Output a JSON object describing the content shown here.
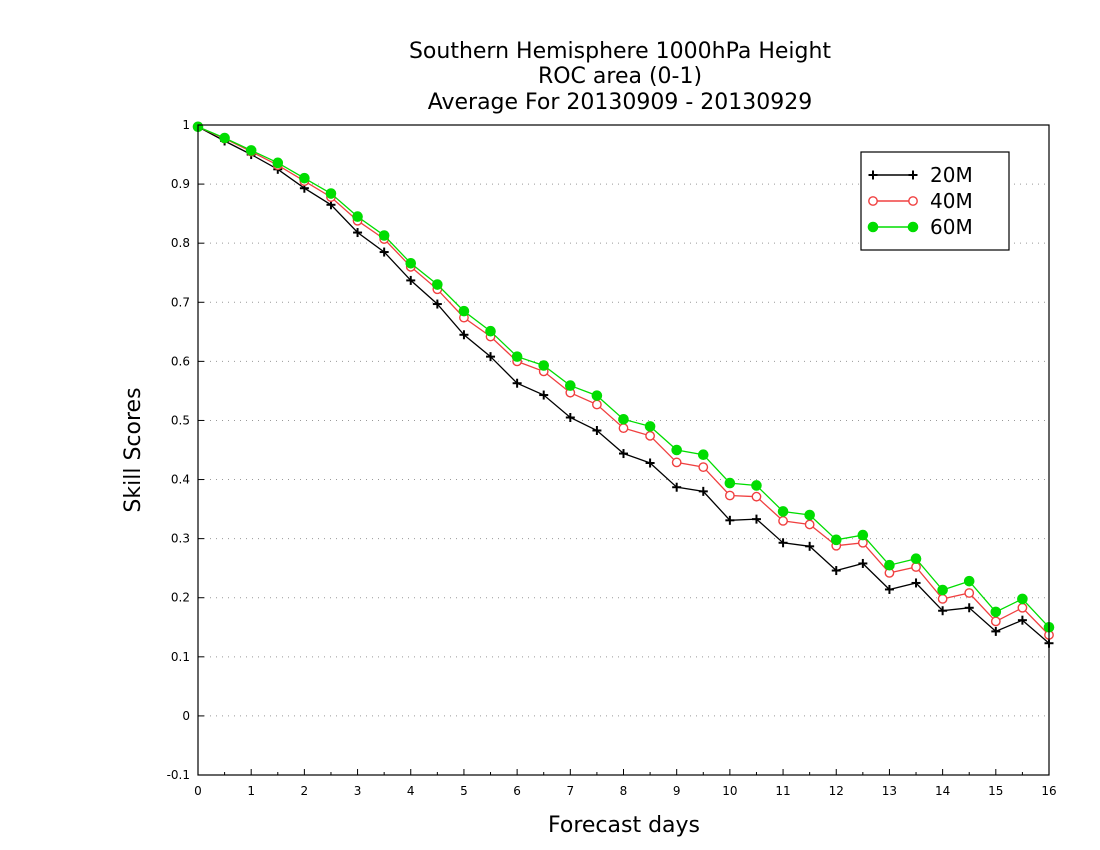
{
  "chart_data": {
    "type": "line",
    "title_lines": [
      "Southern Hemisphere 1000hPa Height",
      "ROC area (0-1)",
      "Average For 20130909 - 20130929"
    ],
    "xlabel": "Forecast days",
    "ylabel": "Skill Scores",
    "xlim": [
      0,
      16
    ],
    "ylim": [
      -0.1,
      1
    ],
    "xticks": [
      0,
      1,
      2,
      3,
      4,
      5,
      6,
      7,
      8,
      9,
      10,
      11,
      12,
      13,
      14,
      15,
      16
    ],
    "yticks": [
      -0.1,
      0,
      0.1,
      0.2,
      0.3,
      0.4,
      0.5,
      0.6,
      0.7,
      0.8,
      0.9,
      1
    ],
    "ytick_labels": [
      "-0.1",
      "0",
      "0.1",
      "0.2",
      "0.3",
      "0.4",
      "0.5",
      "0.6",
      "0.7",
      "0.8",
      "0.9",
      "1"
    ],
    "grid": true,
    "legend_position": "top-right",
    "x": [
      0,
      0.5,
      1,
      1.5,
      2,
      2.5,
      3,
      3.5,
      4,
      4.5,
      5,
      5.5,
      6,
      6.5,
      7,
      7.5,
      8,
      8.5,
      9,
      9.5,
      10,
      10.5,
      11,
      11.5,
      12,
      12.5,
      13,
      13.5,
      14,
      14.5,
      15,
      15.5,
      16
    ],
    "series": [
      {
        "name": "20M",
        "color": "#000000",
        "marker": "plus",
        "values": [
          0.997,
          0.973,
          0.95,
          0.925,
          0.893,
          0.865,
          0.818,
          0.785,
          0.737,
          0.697,
          0.645,
          0.608,
          0.563,
          0.543,
          0.505,
          0.483,
          0.444,
          0.428,
          0.387,
          0.38,
          0.331,
          0.333,
          0.293,
          0.287,
          0.246,
          0.258,
          0.214,
          0.225,
          0.178,
          0.183,
          0.143,
          0.162,
          0.123
        ]
      },
      {
        "name": "40M",
        "color": "#f04040",
        "marker": "open-circle",
        "values": [
          0.997,
          0.977,
          0.955,
          0.932,
          0.905,
          0.878,
          0.838,
          0.807,
          0.76,
          0.722,
          0.674,
          0.642,
          0.6,
          0.583,
          0.547,
          0.527,
          0.487,
          0.474,
          0.429,
          0.421,
          0.373,
          0.371,
          0.33,
          0.324,
          0.288,
          0.293,
          0.242,
          0.252,
          0.198,
          0.208,
          0.16,
          0.183,
          0.137
        ]
      },
      {
        "name": "60M",
        "color": "#00dd00",
        "marker": "filled-circle",
        "values": [
          0.997,
          0.978,
          0.957,
          0.936,
          0.91,
          0.884,
          0.845,
          0.813,
          0.766,
          0.73,
          0.685,
          0.651,
          0.608,
          0.593,
          0.559,
          0.542,
          0.502,
          0.49,
          0.45,
          0.442,
          0.394,
          0.39,
          0.346,
          0.34,
          0.298,
          0.306,
          0.255,
          0.266,
          0.213,
          0.228,
          0.176,
          0.198,
          0.15
        ]
      }
    ]
  }
}
